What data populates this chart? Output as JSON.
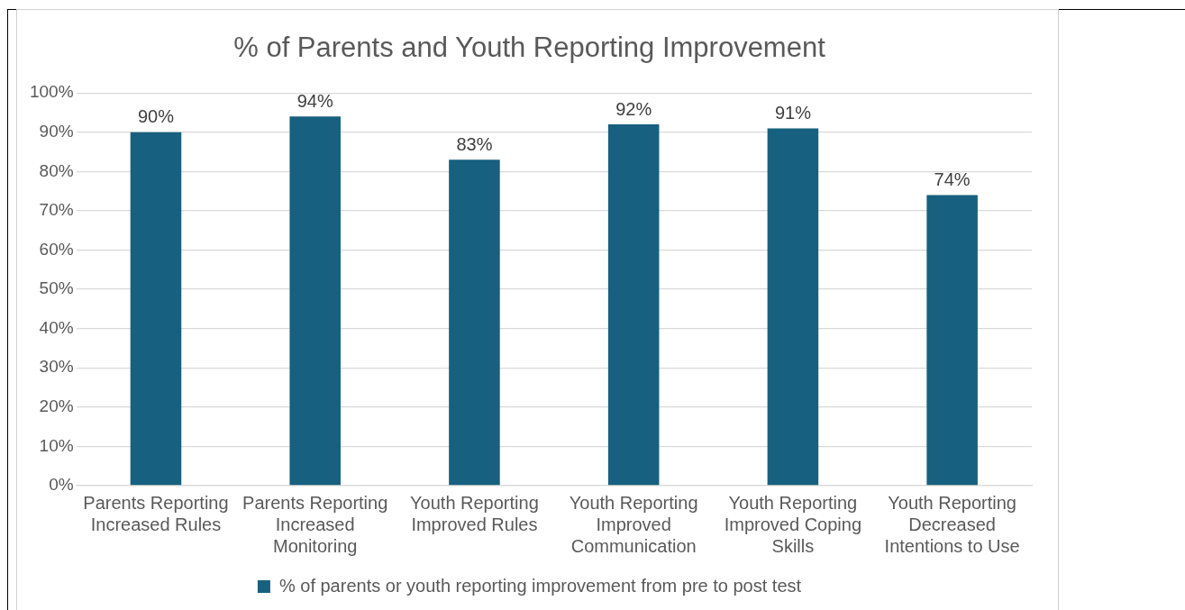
{
  "chart_data": {
    "type": "bar",
    "title": "% of Parents and Youth Reporting Improvement",
    "categories": [
      "Parents Reporting Increased Rules",
      "Parents Reporting Increased Monitoring",
      "Youth Reporting Improved Rules",
      "Youth Reporting Improved Communication",
      "Youth Reporting Improved Coping Skills",
      "Youth Reporting Decreased Intentions to Use"
    ],
    "series": [
      {
        "name": "% of parents or youth reporting improvement from pre to post test",
        "color": "#17607f",
        "values": [
          90,
          94,
          83,
          92,
          91,
          74
        ],
        "value_labels": [
          "90%",
          "94%",
          "83%",
          "92%",
          "91%",
          "74%"
        ]
      }
    ],
    "ylim": [
      0,
      100
    ],
    "yticks": [
      {
        "value": 0,
        "label": "0%"
      },
      {
        "value": 10,
        "label": "10%"
      },
      {
        "value": 20,
        "label": "20%"
      },
      {
        "value": 30,
        "label": "30%"
      },
      {
        "value": 40,
        "label": "40%"
      },
      {
        "value": 50,
        "label": "50%"
      },
      {
        "value": 60,
        "label": "60%"
      },
      {
        "value": 70,
        "label": "70%"
      },
      {
        "value": 80,
        "label": "80%"
      },
      {
        "value": 90,
        "label": "90%"
      },
      {
        "value": 100,
        "label": "100%"
      }
    ],
    "grid": "y",
    "legend": "bottom"
  }
}
